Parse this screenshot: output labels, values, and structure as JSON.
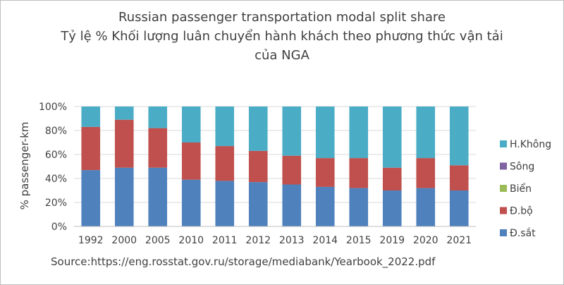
{
  "chart_data": {
    "type": "bar",
    "stacked": true,
    "percent": true,
    "title_lines": [
      "Russian passenger transportation modal split share",
      "Tỷ lệ % Khối lượng luân chuyển hành khách theo phương thức vận tải",
      "của NGA"
    ],
    "ylabel": "%  passenger-km",
    "ylim": [
      0,
      100
    ],
    "yticks": [
      "0%",
      "20%",
      "40%",
      "60%",
      "80%",
      "100%"
    ],
    "grid": true,
    "legend_position": "right",
    "categories": [
      "1992",
      "2000",
      "2005",
      "2010",
      "2011",
      "2012",
      "2013",
      "2014",
      "2015",
      "2019",
      "2020",
      "2021"
    ],
    "series": [
      {
        "name": "Đ.sắt",
        "color": "#4f81bd",
        "values": [
          47,
          49,
          49,
          39,
          38,
          37,
          35,
          33,
          32,
          30,
          32,
          30
        ]
      },
      {
        "name": "Đ.bộ",
        "color": "#c0504d",
        "values": [
          36,
          40,
          33,
          31,
          29,
          26,
          24,
          24,
          25,
          19,
          25,
          21
        ]
      },
      {
        "name": "Biển",
        "color": "#9bbb59",
        "values": [
          0,
          0,
          0,
          0,
          0,
          0,
          0,
          0,
          0,
          0,
          0,
          0
        ]
      },
      {
        "name": "Sông",
        "color": "#8064a2",
        "values": [
          0,
          0,
          0,
          0,
          0,
          0,
          0,
          0,
          0,
          0,
          0,
          0
        ]
      },
      {
        "name": "H.Không",
        "color": "#4bacc6",
        "values": [
          17,
          11,
          18,
          30,
          33,
          37,
          41,
          43,
          43,
          51,
          43,
          49
        ]
      }
    ],
    "legend_order": [
      "H.Không",
      "Sông",
      "Biển",
      "Đ.bộ",
      "Đ.sắt"
    ]
  },
  "source": "Source:https://eng.rosstat.gov.ru/storage/mediabank/Yearbook_2022.pdf"
}
